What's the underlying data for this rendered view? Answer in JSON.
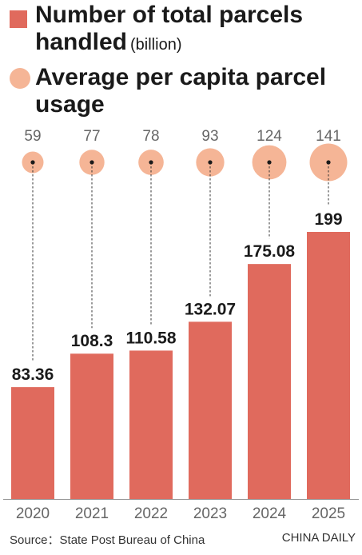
{
  "legend": {
    "bars_label": "Number of total parcels handled",
    "bars_unit": "(billion)",
    "circles_label": "Average per capita parcel usage"
  },
  "colors": {
    "bar": "#e06a5d",
    "circle": "#f5b596",
    "label_dark": "#1a1a1a",
    "label_gray": "#666666"
  },
  "chart_data": {
    "type": "bar",
    "categories": [
      "2020",
      "2021",
      "2022",
      "2023",
      "2024",
      "2025"
    ],
    "series": [
      {
        "name": "Number of total parcels handled",
        "values": [
          83.36,
          108.3,
          110.58,
          132.07,
          175.08,
          199
        ],
        "labels": [
          "83.36",
          "108.3",
          "110.58",
          "132.07",
          "175.08",
          "199"
        ]
      },
      {
        "name": "Average per capita parcel usage",
        "values": [
          59,
          77,
          78,
          93,
          124,
          141
        ],
        "labels": [
          "59",
          "77",
          "78",
          "93",
          "124",
          "141"
        ]
      }
    ],
    "ylim": [
      0,
      199
    ],
    "grid": false
  },
  "footer": {
    "source": "Source：State Post Bureau of China",
    "credit": "CHINA DAILY"
  }
}
